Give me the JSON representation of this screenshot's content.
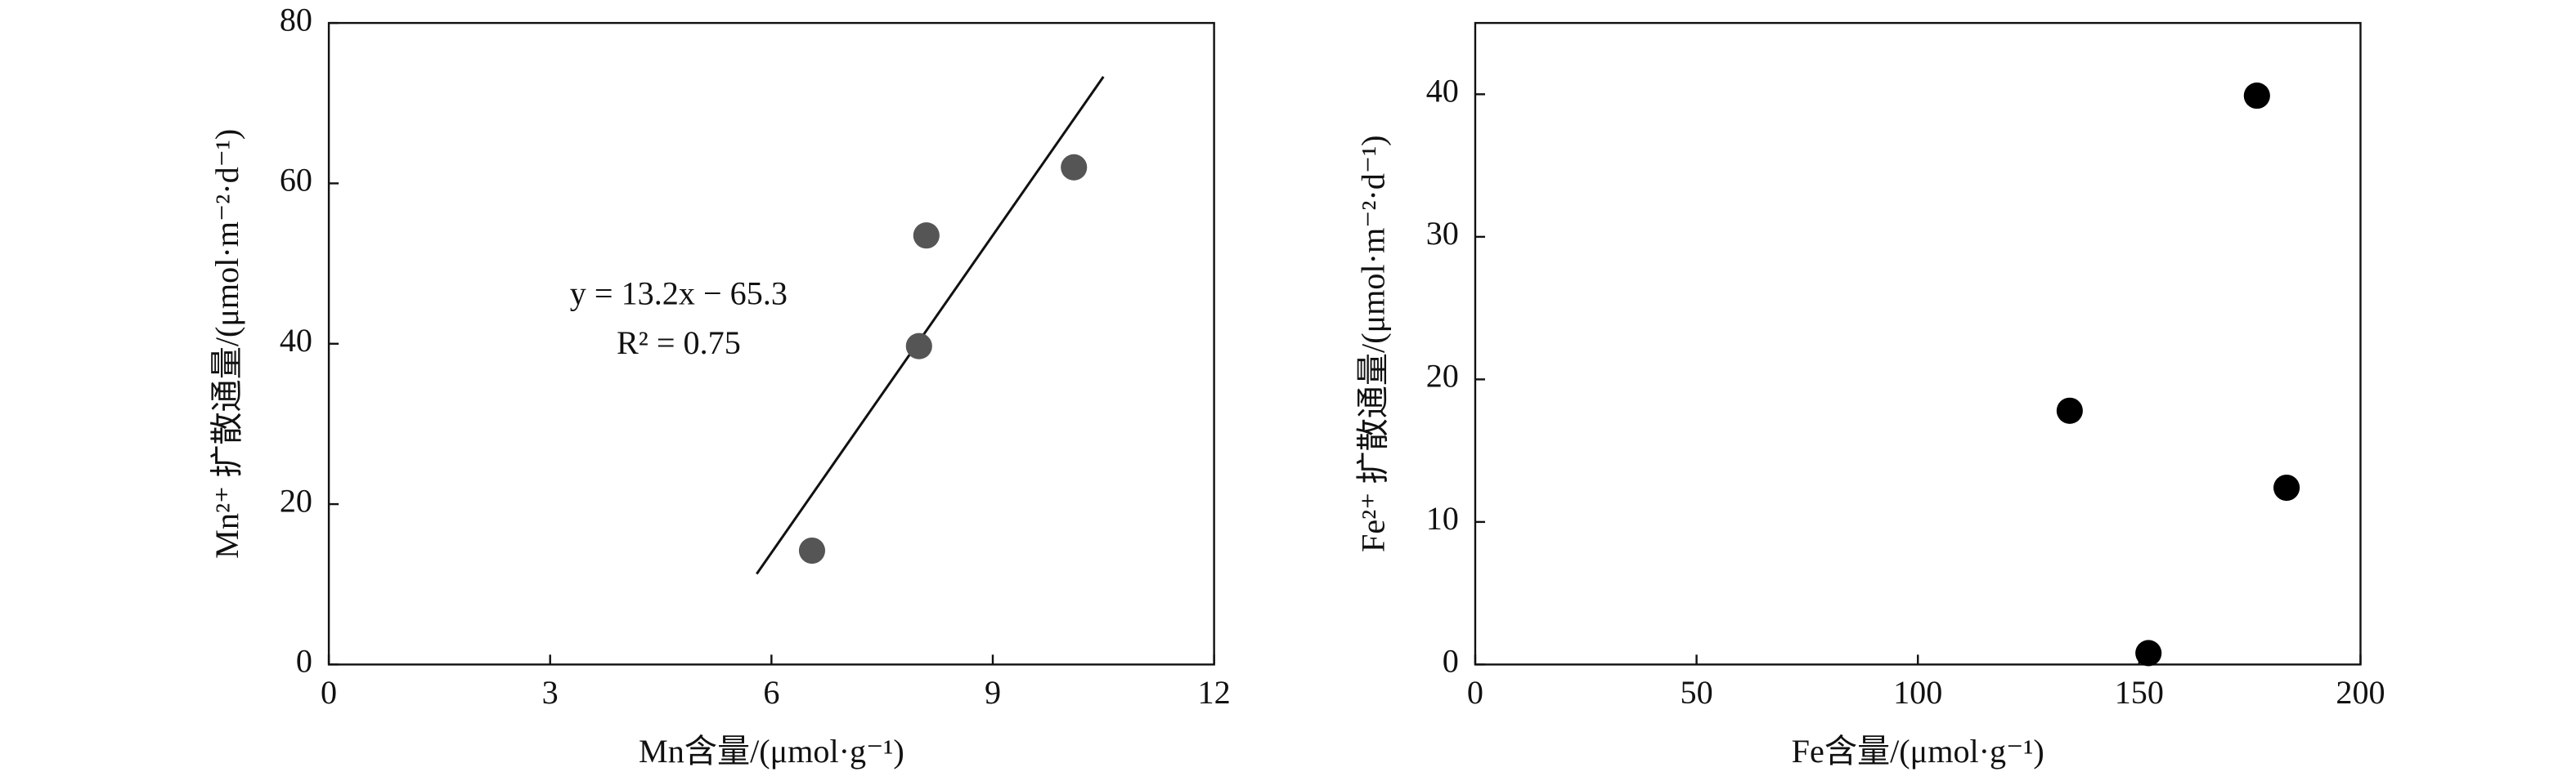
{
  "chart_data": [
    {
      "type": "scatter",
      "x_label": "Mn含量/(μmol·g⁻¹)",
      "y_label": "Mn²⁺ 扩散通量/(μmol·m⁻²·d⁻¹)",
      "x": [
        6.55,
        8.0,
        8.1,
        10.1
      ],
      "values": [
        14.2,
        39.7,
        53.5,
        62.0
      ],
      "color": "#555555",
      "fit": {
        "x": [
          5.8,
          10.5
        ],
        "values": [
          11.3,
          73.3
        ],
        "color": "#111111"
      },
      "annotations": [
        "y = 13.2x − 65.3",
        "R² = 0.75"
      ],
      "xlim": [
        0,
        12
      ],
      "xticks": [
        0,
        3,
        6,
        9,
        12
      ],
      "ylim": [
        0,
        80
      ],
      "yticks": [
        0,
        20,
        40,
        60,
        80
      ]
    },
    {
      "type": "scatter",
      "x_label": "Fe含量/(μmol·g⁻¹)",
      "y_label": "Fe²⁺ 扩散通量/(μmol·m⁻²·d⁻¹)",
      "x": [
        176.6,
        134.3,
        183.3,
        152.1
      ],
      "values": [
        39.9,
        17.8,
        12.4,
        0.8
      ],
      "color": "#000000",
      "xlim": [
        0,
        200
      ],
      "xticks": [
        0,
        50,
        100,
        150,
        200
      ],
      "ylim": [
        0,
        45
      ],
      "yticks": [
        0,
        10,
        20,
        30,
        40
      ]
    }
  ]
}
